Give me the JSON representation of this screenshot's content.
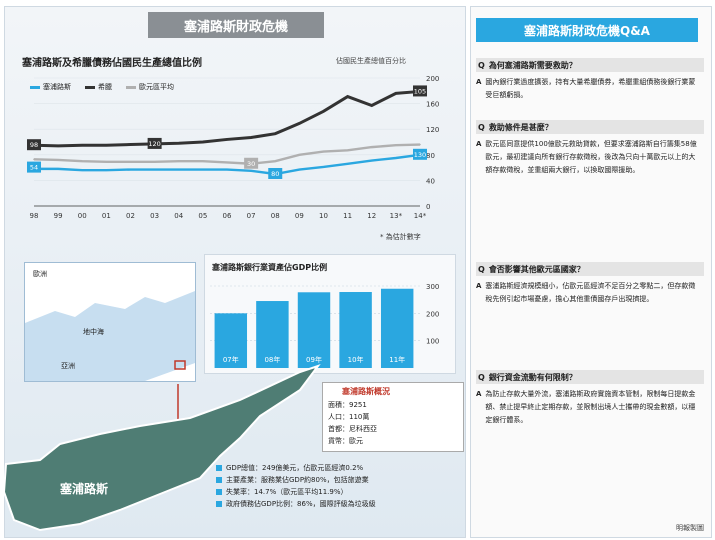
{
  "banner": "塞浦路斯財政危機",
  "chart_data": [
    {
      "type": "line",
      "title": "塞浦路斯及希臘債務佔國民生產總值比例",
      "unit": "佔國民生產總值百分比",
      "categories": [
        "98",
        "99",
        "00",
        "01",
        "02",
        "03",
        "04",
        "05",
        "06",
        "07",
        "08",
        "09",
        "10",
        "11",
        "12",
        "13*",
        "14*"
      ],
      "series": [
        {
          "name": "塞浦路斯",
          "color": "#2aa7e0",
          "values": [
            58,
            58,
            56,
            56,
            57,
            57,
            57,
            57,
            57,
            55,
            50,
            57,
            61,
            66,
            71,
            75,
            80
          ]
        },
        {
          "name": "希臘",
          "color": "#333333",
          "values": [
            95,
            94,
            95,
            95,
            96,
            97,
            98,
            100,
            104,
            107,
            113,
            129,
            148,
            171,
            157,
            176,
            179
          ]
        },
        {
          "name": "歐元區平均",
          "color": "#b0b0b0",
          "values": [
            73,
            72,
            70,
            69,
            69,
            69,
            70,
            70,
            68,
            66,
            70,
            80,
            85,
            87,
            92,
            95,
            96
          ]
        }
      ],
      "ylim": [
        0,
        200
      ],
      "yticks": [
        0,
        40,
        80,
        120,
        160,
        200
      ],
      "point_labels": [
        "98",
        "120",
        "54",
        "105",
        "130",
        "80",
        "30"
      ],
      "note": "* 為估計數字"
    },
    {
      "type": "bar",
      "title": "塞浦路斯銀行業資產佔GDP比例",
      "categories": [
        "07年",
        "08年",
        "09年",
        "10年",
        "11年"
      ],
      "values": [
        200,
        245,
        277,
        278,
        290
      ],
      "ylim": [
        0,
        300
      ],
      "yticks": [
        100,
        200,
        300
      ]
    }
  ],
  "map": {
    "labels": {
      "europe": "歐洲",
      "asia": "亞洲",
      "med": "地中海",
      "cyprus": "塞浦路斯"
    }
  },
  "basic": {
    "title": "塞浦路斯概況",
    "rows": [
      "面積：9251",
      "人口：110萬",
      "首都：尼科西亞",
      "貨幣：歐元"
    ]
  },
  "facts": [
    "GDP總值：249億美元，佔歐元區經濟0.2%",
    "主要產業：服務業佔GDP約80%，包括旅遊業",
    "失業率：14.7%（歐元區平均11.9%）",
    "政府債務佔GDP比例：86%，國際評級為垃圾級"
  ],
  "qa": {
    "title": "塞浦路斯財政危機Q&A",
    "items": [
      {
        "q": "為何塞浦路斯需要救助？",
        "a": "國內銀行業過度擴張，持有大量希臘債券，希臘重組債務後銀行業蒙受巨額虧損。"
      },
      {
        "q": "救助條件是甚麼？",
        "a": "歐元區同意提供100億歐元救助貸款，但要求塞浦路斯自行籌集58億歐元，最初建議向所有銀行存款徵稅，後改為只向十萬歐元以上的大額存款徵稅，並重組兩大銀行，以換取國際援助。"
      },
      {
        "q": "會否影響其他歐元區國家？",
        "a": "塞浦路斯經濟規模細小，佔歐元區經濟不足百分之零點二，但存款徵稅先例引起市場憂慮，擔心其他重債國存戶出現擠提。"
      },
      {
        "q": "銀行資金流動有何限制？",
        "a": "為防止存款大量外流，塞浦路斯政府實施資本管制，限制每日提款金額、禁止提早終止定期存款，並限制出境人士攜帶的現金數額，以穩定銀行體系。"
      }
    ]
  },
  "credit": "明報製圖"
}
